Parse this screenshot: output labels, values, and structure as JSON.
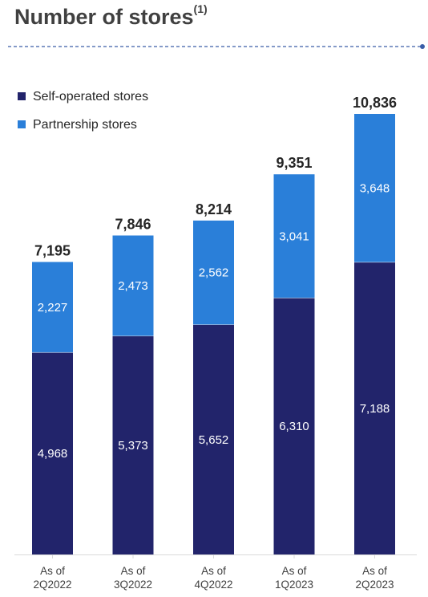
{
  "header": {
    "title": "Number of stores",
    "footnote_marker": "(1)"
  },
  "colors": {
    "self_operated": "#22246b",
    "partnership": "#2a7fd9",
    "divider": "#3a5ea8",
    "title": "#404040"
  },
  "chart_data": {
    "type": "bar",
    "stacked": true,
    "title": "Number of stores",
    "categories": [
      [
        "As of",
        "2Q2022"
      ],
      [
        "As of",
        "3Q2022"
      ],
      [
        "As of",
        "4Q2022"
      ],
      [
        "As of",
        "1Q2023"
      ],
      [
        "As of",
        "2Q2023"
      ]
    ],
    "series": [
      {
        "name": "Self-operated stores",
        "values": [
          4968,
          5373,
          5652,
          6310,
          7188
        ]
      },
      {
        "name": "Partnership stores",
        "values": [
          2227,
          2473,
          2562,
          3041,
          3648
        ]
      }
    ],
    "totals": [
      7195,
      7846,
      8214,
      9351,
      10836
    ],
    "ylim": [
      0,
      10836
    ],
    "grid": false,
    "legend": "top-left",
    "xlabel": "",
    "ylabel": ""
  }
}
